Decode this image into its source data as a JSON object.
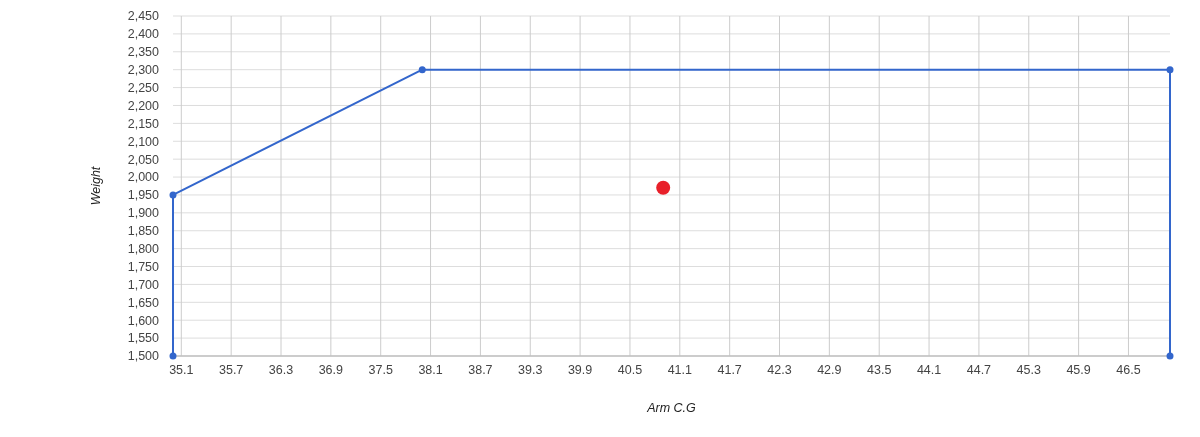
{
  "chart_data": {
    "type": "line",
    "xlabel": "Arm C.G",
    "ylabel": "Weight",
    "xlim": [
      35,
      47
    ],
    "xticks": [
      35.1,
      35.7,
      36.3,
      36.9,
      37.5,
      38.1,
      38.7,
      39.3,
      39.9,
      40.5,
      41.1,
      41.7,
      42.3,
      42.9,
      43.5,
      44.1,
      44.7,
      45.3,
      45.9,
      46.5
    ],
    "ylim": [
      1500,
      2450
    ],
    "yticks": [
      {
        "value": 1500,
        "label": "1,500"
      },
      {
        "value": 1550,
        "label": "1,550"
      },
      {
        "value": 1600,
        "label": "1,600"
      },
      {
        "value": 1650,
        "label": "1,650"
      },
      {
        "value": 1700,
        "label": "1,700"
      },
      {
        "value": 1750,
        "label": "1,750"
      },
      {
        "value": 1800,
        "label": "1,800"
      },
      {
        "value": 1850,
        "label": "1,850"
      },
      {
        "value": 1900,
        "label": "1,900"
      },
      {
        "value": 1950,
        "label": "1,950"
      },
      {
        "value": 2000,
        "label": "2,000"
      },
      {
        "value": 2050,
        "label": "2,050"
      },
      {
        "value": 2100,
        "label": "2,100"
      },
      {
        "value": 2150,
        "label": "2,150"
      },
      {
        "value": 2200,
        "label": "2,200"
      },
      {
        "value": 2250,
        "label": "2,250"
      },
      {
        "value": 2300,
        "label": "2,300"
      },
      {
        "value": 2350,
        "label": "2,350"
      },
      {
        "value": 2400,
        "label": "2,400"
      },
      {
        "value": 2450,
        "label": "2,450"
      }
    ],
    "grid": true,
    "marker": "circle",
    "series": [
      {
        "color": "#3366cc",
        "x": [
          35,
          35,
          38,
          47,
          47
        ],
        "values": [
          1500,
          1950,
          2300,
          2300,
          1500
        ]
      },
      {
        "type": "scatter",
        "color": "#e8202a",
        "x": [
          40.9
        ],
        "values": [
          1970
        ]
      }
    ]
  }
}
